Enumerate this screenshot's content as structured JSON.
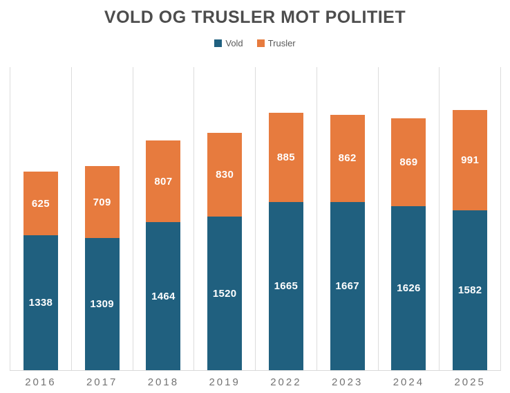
{
  "chart_data": {
    "type": "bar",
    "stacked": true,
    "title": "VOLD OG TRUSLER MOT POLITIET",
    "categories": [
      "2016",
      "2017",
      "2018",
      "2019",
      "2022",
      "2023",
      "2024",
      "2025"
    ],
    "series": [
      {
        "name": "Vold",
        "color": "#20607f",
        "values": [
          1338,
          1309,
          1464,
          1520,
          1665,
          1667,
          1626,
          1582
        ]
      },
      {
        "name": "Trusler",
        "color": "#e77b3e",
        "values": [
          625,
          709,
          807,
          830,
          885,
          862,
          869,
          991
        ]
      }
    ],
    "totals": [
      1963,
      2018,
      2271,
      2350,
      2550,
      2529,
      2495,
      2573
    ],
    "xlabel": "",
    "ylabel": "",
    "ylim": [
      0,
      3000
    ],
    "grid": "vertical-category-separators",
    "legend_position": "top-center",
    "value_labels": "inside-center-white"
  },
  "colors": {
    "vold": "#20607f",
    "trusler": "#e77b3e",
    "title_text": "#4d4d4d",
    "axis_tick_text": "#737373",
    "legend_text": "#595959",
    "gridline": "#dcdcdc",
    "axis_line": "#d9d9d9",
    "value_label_text": "#ffffff",
    "background": "#ffffff"
  }
}
